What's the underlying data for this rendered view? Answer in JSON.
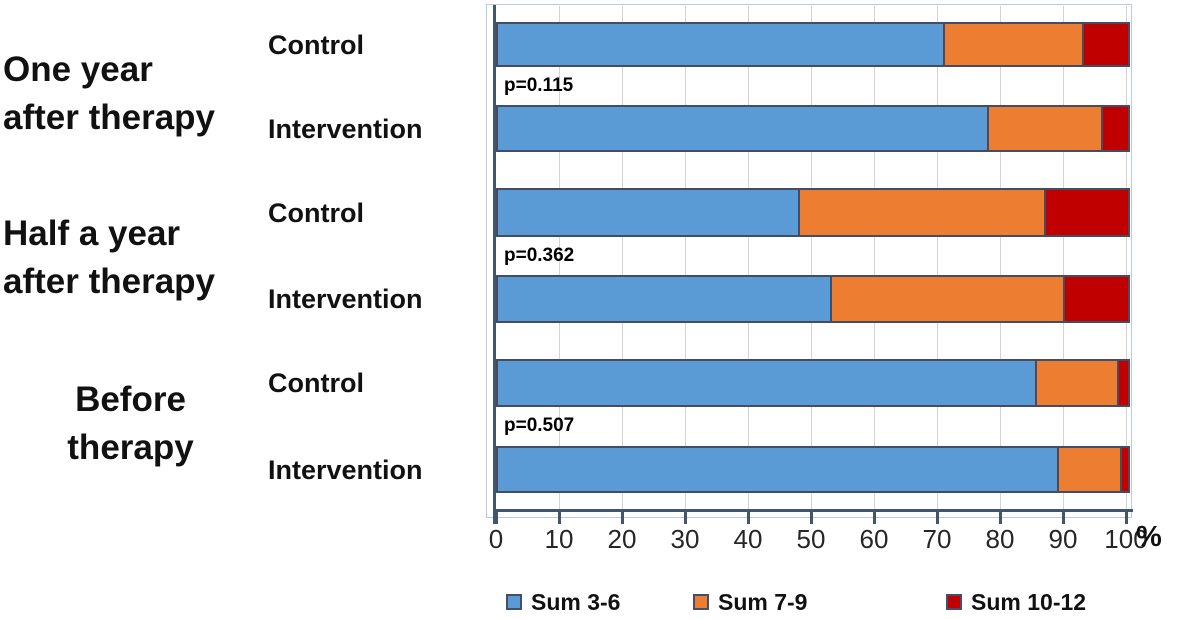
{
  "chart_data": {
    "type": "bar",
    "orientation": "horizontal-stacked",
    "title": "",
    "xlabel": "%",
    "xlim": [
      0,
      100
    ],
    "x_ticks": [
      0,
      10,
      20,
      30,
      40,
      50,
      60,
      70,
      80,
      90,
      100
    ],
    "grid": true,
    "legend_position": "bottom",
    "series_names": [
      "Sum 3-6",
      "Sum 7-9",
      "Sum 10-12"
    ],
    "series_colors": [
      "#5B9BD5",
      "#ED7D31",
      "#C00000"
    ],
    "groups": [
      {
        "label_lines": [
          "One year",
          "after therapy"
        ],
        "p_value": "p=0.115",
        "bars": [
          {
            "label": "Control",
            "values": [
              71,
              22,
              7
            ]
          },
          {
            "label": "Intervention",
            "values": [
              78,
              18,
              4
            ]
          }
        ]
      },
      {
        "label_lines": [
          "Half a year",
          "after therapy"
        ],
        "p_value": "p=0.362",
        "bars": [
          {
            "label": "Control",
            "values": [
              48,
              39,
              13
            ]
          },
          {
            "label": "Intervention",
            "values": [
              53,
              37,
              10
            ]
          }
        ]
      },
      {
        "label_lines": [
          "Before",
          "therapy"
        ],
        "p_value": "p=0.507",
        "bars": [
          {
            "label": "Control",
            "values": [
              85.5,
              13,
              1.5
            ]
          },
          {
            "label": "Intervention",
            "values": [
              89,
              10,
              1
            ]
          }
        ]
      }
    ]
  },
  "colors": {
    "axis": "#44546A",
    "gridline": "#d4d4d4",
    "plot_border": "#b9cbe3",
    "bar_border": "#444b63",
    "blue": "#5B9BD5",
    "orange": "#ED7D31",
    "red": "#C00000"
  }
}
